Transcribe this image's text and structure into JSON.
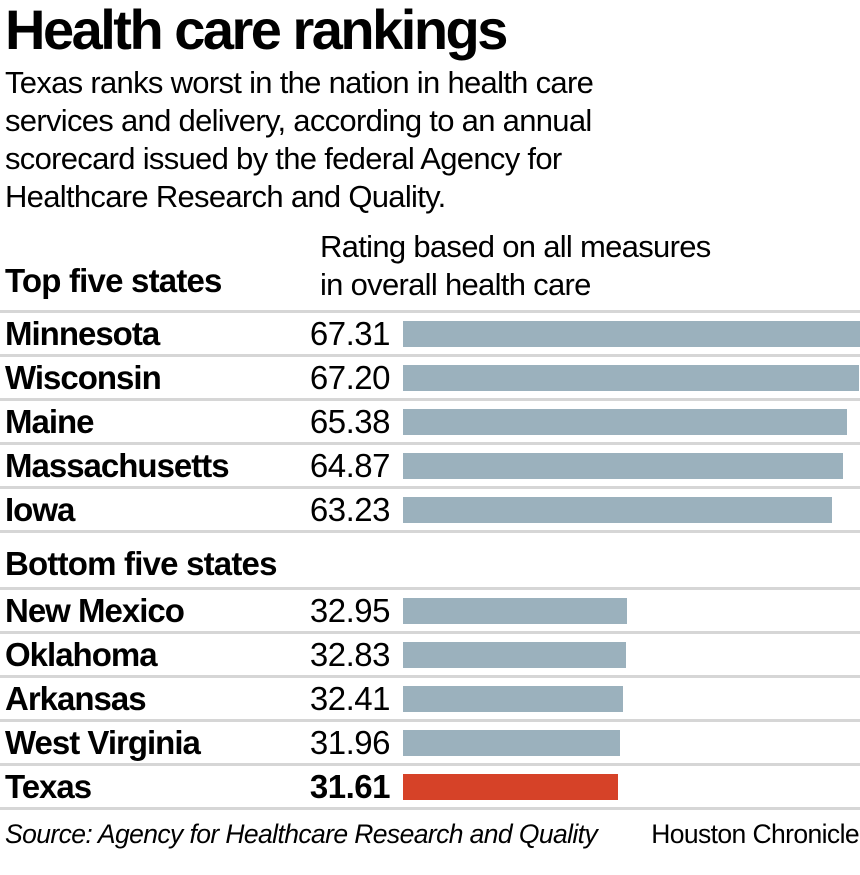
{
  "header": {
    "title": "Health care rankings",
    "subtitle_lines": [
      "Texas ranks worst in the nation in health care",
      "services and delivery, according to an annual",
      "scorecard issued by the federal Agency for",
      "Healthcare Research and Quality."
    ]
  },
  "axis_note_lines": [
    "Rating based on all measures",
    "in overall health care"
  ],
  "footer": {
    "source": "Source: Agency for Healthcare Research and Quality",
    "publisher": "Houston Chronicle"
  },
  "chart_data": {
    "type": "bar",
    "orientation": "horizontal",
    "title": "Health care rankings",
    "value_axis_label": "Rating based on all measures in overall health care",
    "value_axis_min": 0,
    "value_axis_max": 67.31,
    "grid": false,
    "bar_color": "#9bb1bd",
    "highlight_color": "#d64228",
    "divider_color": "#d6d6d6",
    "highlighted_category": "Texas",
    "groups": [
      {
        "label": "Top five states",
        "bars": [
          {
            "state": "Minnesota",
            "value": 67.31,
            "display": "67.31",
            "highlight": false
          },
          {
            "state": "Wisconsin",
            "value": 67.2,
            "display": "67.20",
            "highlight": false
          },
          {
            "state": "Maine",
            "value": 65.38,
            "display": "65.38",
            "highlight": false
          },
          {
            "state": "Massachusetts",
            "value": 64.87,
            "display": "64.87",
            "highlight": false
          },
          {
            "state": "Iowa",
            "value": 63.23,
            "display": "63.23",
            "highlight": false
          }
        ]
      },
      {
        "label": "Bottom five states",
        "bars": [
          {
            "state": "New Mexico",
            "value": 32.95,
            "display": "32.95",
            "highlight": false
          },
          {
            "state": "Oklahoma",
            "value": 32.83,
            "display": "32.83",
            "highlight": false
          },
          {
            "state": "Arkansas",
            "value": 32.41,
            "display": "32.41",
            "highlight": false
          },
          {
            "state": "West Virginia",
            "value": 31.96,
            "display": "31.96",
            "highlight": false
          },
          {
            "state": "Texas",
            "value": 31.61,
            "display": "31.61",
            "highlight": true
          }
        ]
      }
    ]
  }
}
